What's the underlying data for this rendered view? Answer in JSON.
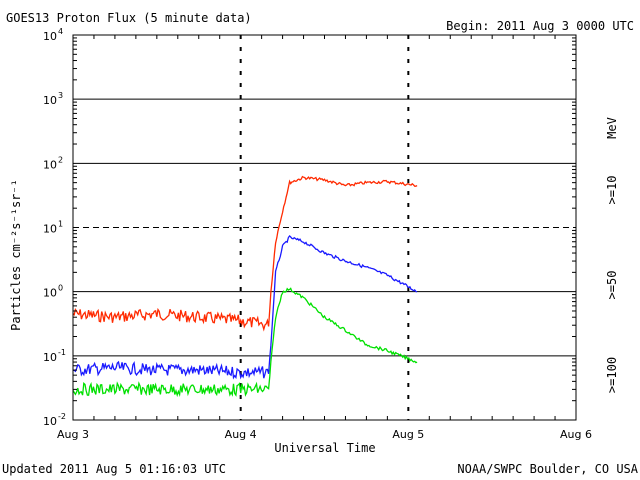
{
  "header": {
    "title": "GOES13 Proton Flux (5 minute data)",
    "begin": "Begin: 2011 Aug 3 0000 UTC"
  },
  "footer": {
    "updated": "Updated 2011 Aug  5 01:16:03 UTC",
    "credit": "NOAA/SWPC Boulder, CO USA"
  },
  "chart_data": {
    "type": "line",
    "title": "GOES13 Proton Flux (5 minute data)",
    "xlabel": "Universal Time",
    "ylabel": "Particles cm⁻²s⁻¹sr⁻¹",
    "y_scale": "log",
    "ylim": [
      0.01,
      10000
    ],
    "xlim": [
      "2011-08-03 00:00",
      "2011-08-06 00:00"
    ],
    "x_ticks": [
      "Aug 3",
      "Aug 4",
      "Aug 5",
      "Aug 6"
    ],
    "y_ticks": [
      {
        "base": "10",
        "exp": "-2"
      },
      {
        "base": "10",
        "exp": "-1"
      },
      {
        "base": "10",
        "exp": "0"
      },
      {
        "base": "10",
        "exp": "1"
      },
      {
        "base": "10",
        "exp": "2"
      },
      {
        "base": "10",
        "exp": "3"
      },
      {
        "base": "10",
        "exp": "4"
      }
    ],
    "threshold_line": 10,
    "legend_placement": "right",
    "legend_title": "MeV",
    "grid": "horizontal at decades, dashed at 10",
    "series": [
      {
        "name": ">=10",
        "color": "#ff2a00",
        "points": [
          [
            "2011-08-03 00:00",
            0.45
          ],
          [
            "2011-08-03 06:00",
            0.4
          ],
          [
            "2011-08-03 12:00",
            0.45
          ],
          [
            "2011-08-03 18:00",
            0.4
          ],
          [
            "2011-08-04 00:00",
            0.35
          ],
          [
            "2011-08-04 04:00",
            0.3
          ],
          [
            "2011-08-04 04:20",
            1.0
          ],
          [
            "2011-08-04 05:00",
            6.0
          ],
          [
            "2011-08-04 06:00",
            18.0
          ],
          [
            "2011-08-04 07:00",
            50.0
          ],
          [
            "2011-08-04 09:00",
            60.0
          ],
          [
            "2011-08-04 12:00",
            55.0
          ],
          [
            "2011-08-04 15:00",
            45.0
          ],
          [
            "2011-08-04 18:00",
            50.0
          ],
          [
            "2011-08-04 21:00",
            52.0
          ],
          [
            "2011-08-05 01:15",
            45.0
          ]
        ]
      },
      {
        "name": ">=50",
        "color": "#1a1aff",
        "points": [
          [
            "2011-08-03 00:00",
            0.06
          ],
          [
            "2011-08-03 06:00",
            0.065
          ],
          [
            "2011-08-03 12:00",
            0.06
          ],
          [
            "2011-08-03 18:00",
            0.06
          ],
          [
            "2011-08-04 00:00",
            0.055
          ],
          [
            "2011-08-04 04:00",
            0.055
          ],
          [
            "2011-08-04 04:20",
            0.15
          ],
          [
            "2011-08-04 05:00",
            2.0
          ],
          [
            "2011-08-04 06:00",
            5.0
          ],
          [
            "2011-08-04 07:00",
            7.0
          ],
          [
            "2011-08-04 09:00",
            6.0
          ],
          [
            "2011-08-04 12:00",
            4.0
          ],
          [
            "2011-08-04 15:00",
            3.0
          ],
          [
            "2011-08-04 18:00",
            2.4
          ],
          [
            "2011-08-04 21:00",
            1.8
          ],
          [
            "2011-08-05 01:15",
            1.0
          ]
        ]
      },
      {
        "name": ">=100",
        "color": "#00e000",
        "points": [
          [
            "2011-08-03 00:00",
            0.03
          ],
          [
            "2011-08-03 06:00",
            0.03
          ],
          [
            "2011-08-03 12:00",
            0.03
          ],
          [
            "2011-08-03 18:00",
            0.03
          ],
          [
            "2011-08-04 00:00",
            0.03
          ],
          [
            "2011-08-04 04:00",
            0.03
          ],
          [
            "2011-08-04 04:20",
            0.08
          ],
          [
            "2011-08-04 05:00",
            0.4
          ],
          [
            "2011-08-04 06:00",
            1.0
          ],
          [
            "2011-08-04 07:00",
            1.1
          ],
          [
            "2011-08-04 09:00",
            0.8
          ],
          [
            "2011-08-04 12:00",
            0.4
          ],
          [
            "2011-08-04 15:00",
            0.25
          ],
          [
            "2011-08-04 18:00",
            0.15
          ],
          [
            "2011-08-04 21:00",
            0.12
          ],
          [
            "2011-08-05 01:15",
            0.08
          ]
        ]
      }
    ]
  }
}
